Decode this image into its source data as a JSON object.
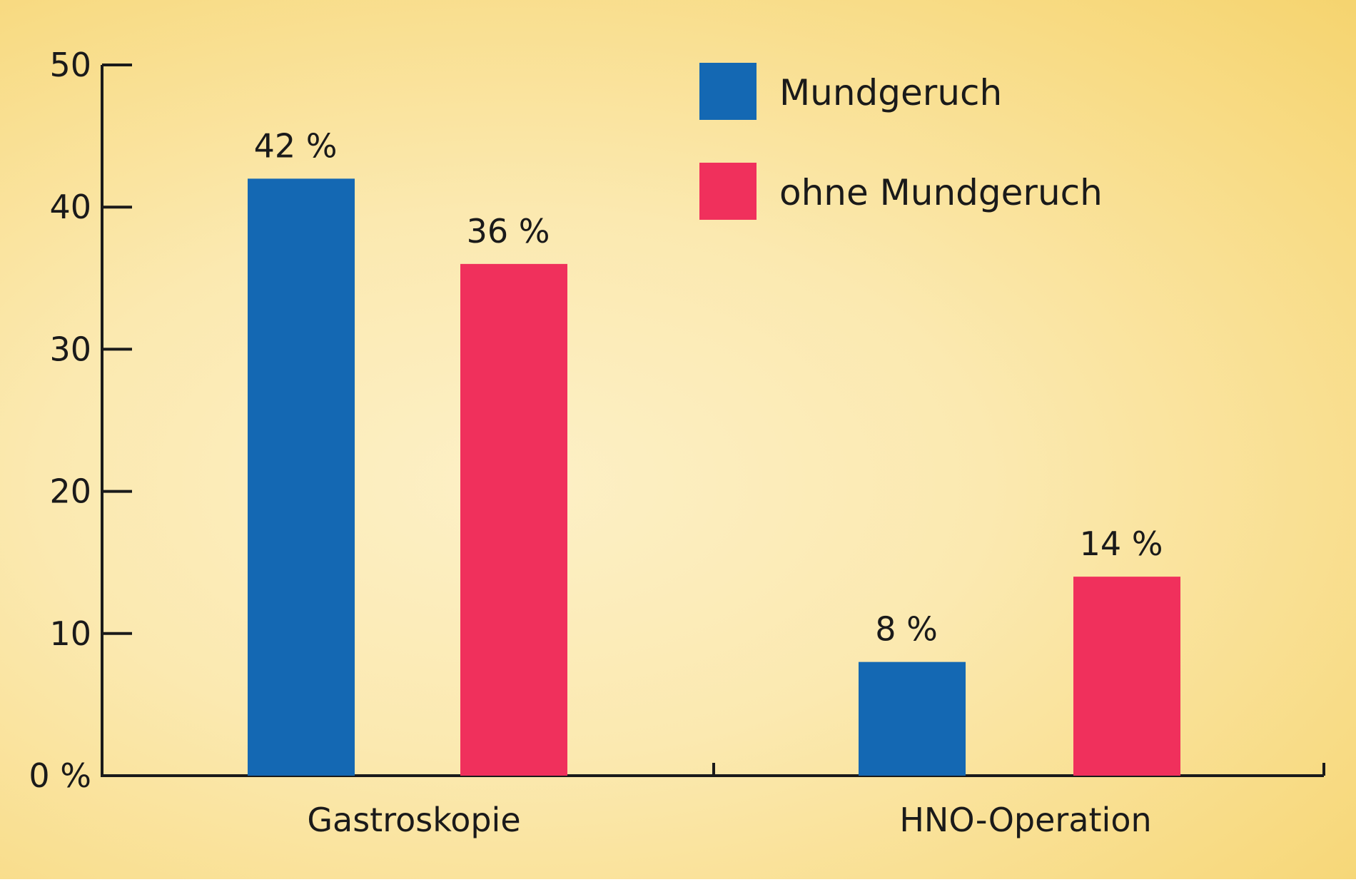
{
  "chart_data": {
    "type": "bar",
    "categories": [
      "Gastroskopie",
      "HNO-Operation"
    ],
    "series": [
      {
        "name": "Mundgeruch",
        "values": [
          42,
          8
        ],
        "labels": [
          "42 %",
          "8 %"
        ],
        "color": "#1468b3"
      },
      {
        "name": "ohne Mundgeruch",
        "values": [
          36,
          14
        ],
        "labels": [
          "36 %",
          "14 %"
        ],
        "color": "#f0305c"
      }
    ],
    "yticks": [
      0,
      10,
      20,
      30,
      40,
      50
    ],
    "ytick_labels": [
      "0 %",
      "10",
      "20",
      "30",
      "40",
      "50"
    ],
    "ylim": [
      0,
      50
    ],
    "title": "",
    "xlabel": "",
    "ylabel": "",
    "grid": false,
    "legend_position": "top-right"
  }
}
